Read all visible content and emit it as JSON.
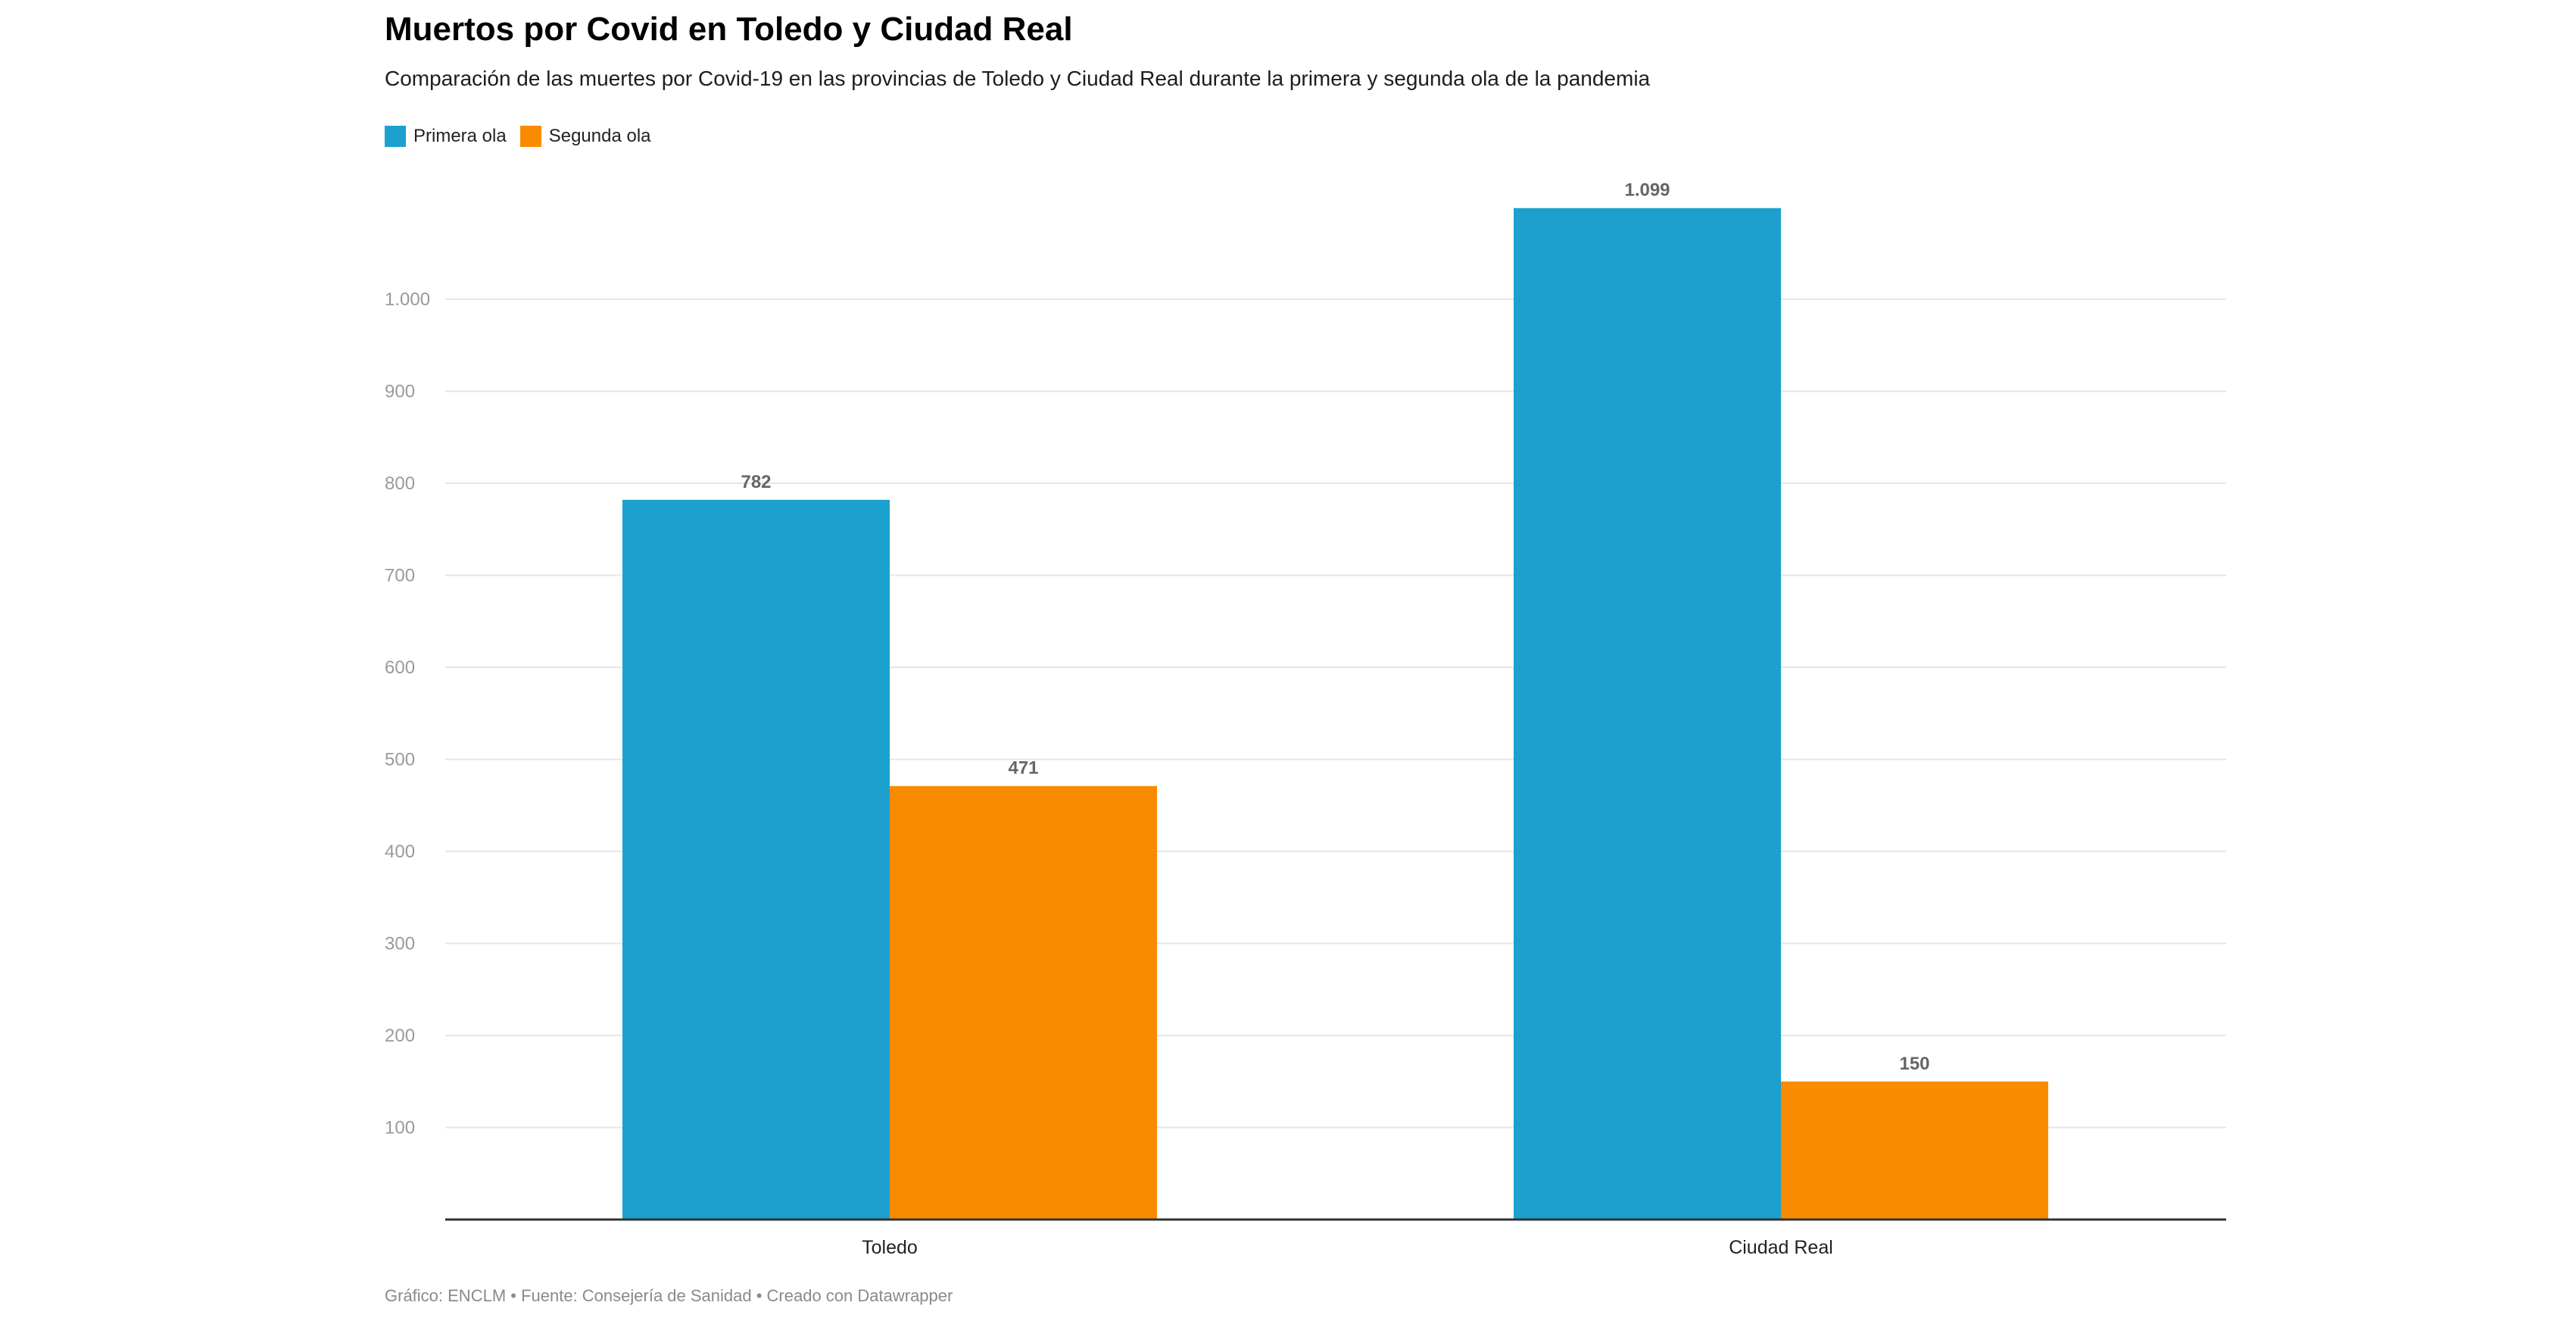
{
  "header": {
    "title": "Muertos por Covid en Toledo y Ciudad Real",
    "subtitle": "Comparación de las muertes por Covid-19 en las provincias de Toledo y Ciudad Real durante la primera y segunda ola de la pandemia"
  },
  "legend": {
    "placement": "top-left",
    "items": [
      {
        "label": "Primera ola",
        "color": "#1ca1cf"
      },
      {
        "label": "Segunda ola",
        "color": "#f98b00"
      }
    ]
  },
  "footer": {
    "text": "Gráfico: ENCLM • Fuente: Consejería de Sanidad • Creado con Datawrapper"
  },
  "chart_data": {
    "type": "bar",
    "title": "Muertos por Covid en Toledo y Ciudad Real",
    "subtitle": "Comparación de las muertes por Covid-19 en las provincias de Toledo y Ciudad Real durante la primera y segunda ola de la pandemia",
    "xlabel": "",
    "ylabel": "",
    "categories": [
      "Toledo",
      "Ciudad Real"
    ],
    "series": [
      {
        "name": "Primera ola",
        "color": "#1ca1cf",
        "values": [
          782,
          1099
        ],
        "value_labels": [
          "782",
          "1.099"
        ]
      },
      {
        "name": "Segunda ola",
        "color": "#f98b00",
        "values": [
          471,
          150
        ],
        "value_labels": [
          "471",
          "150"
        ]
      }
    ],
    "ylim": [
      0,
      1100
    ],
    "yticks": [
      100,
      200,
      300,
      400,
      500,
      600,
      700,
      800,
      900,
      1000
    ],
    "ytick_labels": [
      "100",
      "200",
      "300",
      "400",
      "500",
      "600",
      "700",
      "800",
      "900",
      "1.000"
    ],
    "grid": true,
    "legend": "top-left"
  }
}
